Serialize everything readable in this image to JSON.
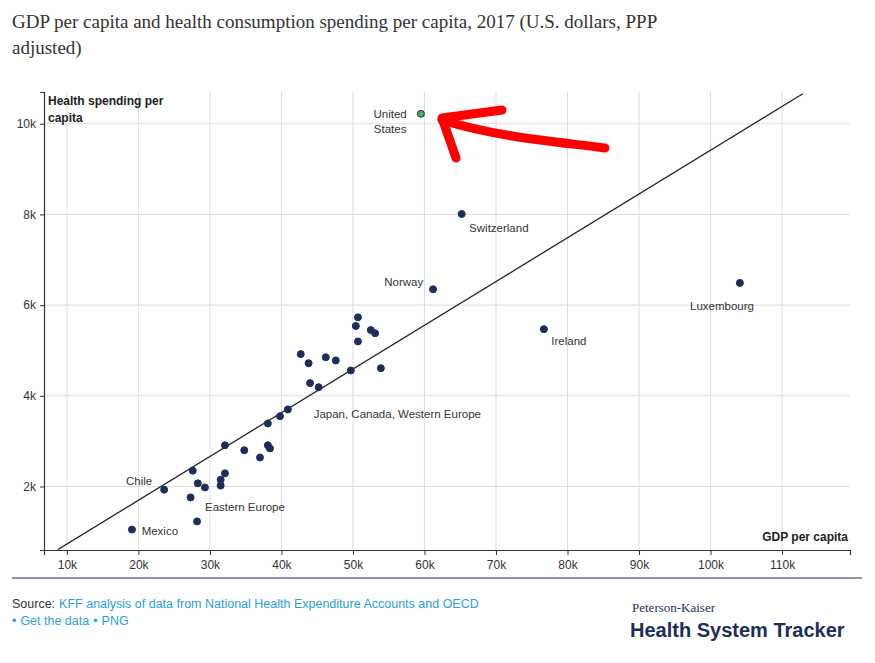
{
  "chart_data": {
    "type": "scatter",
    "title": [
      "GDP per capita and health consumption spending per capita, 2017 (U.S. dollars, PPP",
      "adjusted)"
    ],
    "ylabel": [
      "Health spending per",
      "capita"
    ],
    "xlabel": "GDP per capita",
    "x": [
      59500,
      65200,
      61200,
      104100,
      76700,
      50700,
      50400,
      52500,
      53100,
      50700,
      42700,
      46200,
      47600,
      43800,
      49700,
      53900,
      44000,
      45200,
      40900,
      39800,
      38100,
      32100,
      38100,
      38400,
      34800,
      37000,
      27600,
      32100,
      31500,
      28300,
      31500,
      29300,
      23600,
      27300,
      28200,
      19100
    ],
    "values": [
      10220,
      8010,
      6350,
      6490,
      5470,
      5730,
      5540,
      5450,
      5380,
      5200,
      4920,
      4850,
      4780,
      4720,
      4560,
      4610,
      4280,
      4190,
      3700,
      3550,
      3390,
      2910,
      2910,
      2840,
      2800,
      2640,
      2350,
      2290,
      2150,
      2070,
      2020,
      1980,
      1930,
      1760,
      1230,
      1050
    ],
    "colors": [
      "#4caf50",
      "#1c2f5a",
      "#1c2f5a",
      "#1c2f5a",
      "#1c2f5a",
      "#1c2f5a",
      "#1c2f5a",
      "#1c2f5a",
      "#1c2f5a",
      "#1c2f5a",
      "#1c2f5a",
      "#1c2f5a",
      "#1c2f5a",
      "#1c2f5a",
      "#1c2f5a",
      "#1c2f5a",
      "#1c2f5a",
      "#1c2f5a",
      "#1c2f5a",
      "#1c2f5a",
      "#1c2f5a",
      "#1c2f5a",
      "#1c2f5a",
      "#1c2f5a",
      "#1c2f5a",
      "#1c2f5a",
      "#1c2f5a",
      "#1c2f5a",
      "#1c2f5a",
      "#1c2f5a",
      "#1c2f5a",
      "#1c2f5a",
      "#1c2f5a",
      "#1c2f5a",
      "#1c2f5a",
      "#1c2f5a"
    ],
    "marker": "circle",
    "trend_line": {
      "type": "line",
      "color": "#222222",
      "x": [
        8740,
        112900
      ],
      "values": [
        610,
        10660
      ]
    },
    "xlim": [
      6800,
      119500
    ],
    "ylim": [
      600,
      10700
    ],
    "xticks": [
      {
        "value": 10000,
        "label": "10k"
      },
      {
        "value": 20000,
        "label": "20k"
      },
      {
        "value": 30000,
        "label": "30k"
      },
      {
        "value": 40000,
        "label": "40k"
      },
      {
        "value": 50000,
        "label": "50k"
      },
      {
        "value": 60000,
        "label": "60k"
      },
      {
        "value": 70000,
        "label": "70k"
      },
      {
        "value": 80000,
        "label": "80k"
      },
      {
        "value": 90000,
        "label": "90k"
      },
      {
        "value": 100000,
        "label": "100k"
      },
      {
        "value": 110000,
        "label": "110k"
      }
    ],
    "yticks": [
      {
        "value": 2000,
        "label": "2k"
      },
      {
        "value": 4000,
        "label": "4k"
      },
      {
        "value": 6000,
        "label": "6k"
      },
      {
        "value": 8000,
        "label": "8k"
      },
      {
        "value": 10000,
        "label": "10k"
      }
    ],
    "grid": true,
    "annotations": [
      {
        "text": [
          "United",
          "States"
        ],
        "x": 55200,
        "y": 10220
      },
      {
        "text": [
          "Switzerland"
        ],
        "x": 70400,
        "y": 7700
      },
      {
        "text": [
          "Norway"
        ],
        "x": 57100,
        "y": 6510
      },
      {
        "text": [
          "Luxembourg"
        ],
        "x": 101600,
        "y": 5980
      },
      {
        "text": [
          "Ireland"
        ],
        "x": 80200,
        "y": 5200
      },
      {
        "text": [
          "Japan, Canada, Western Europe"
        ],
        "x": 56200,
        "y": 3610
      },
      {
        "text": [
          "Eastern Europe"
        ],
        "x": 34900,
        "y": 1540
      },
      {
        "text": [
          "Chile"
        ],
        "x": 20100,
        "y": 2130
      },
      {
        "text": [
          "Mexico"
        ],
        "x": 23000,
        "y": 1010
      }
    ],
    "source": {
      "label": "Source:",
      "text": "KFF analysis of data from National Health Expenditure Accounts and OECD",
      "separator": "•",
      "links": [
        "Get the data",
        "PNG"
      ]
    },
    "brand": [
      "Peterson-Kaiser",
      "Health System Tracker"
    ]
  }
}
